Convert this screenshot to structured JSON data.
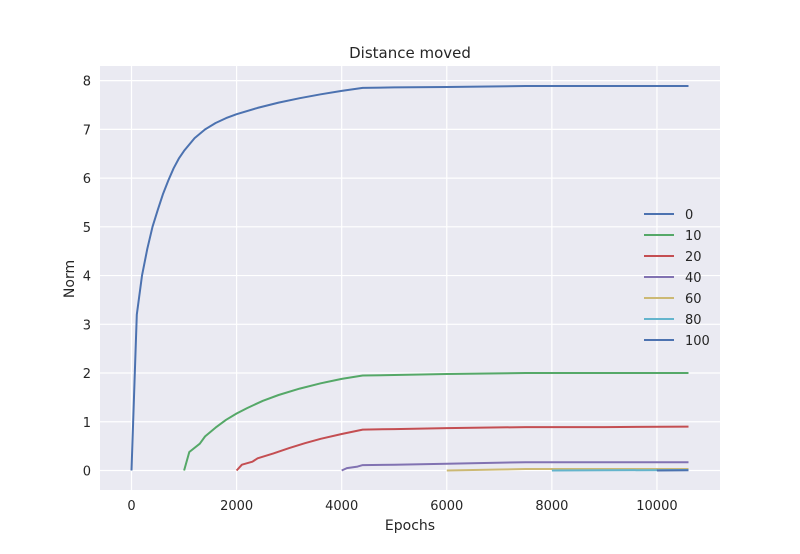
{
  "chart_data": {
    "type": "line",
    "title": "Distance moved",
    "xlabel": "Epochs",
    "ylabel": "Norm",
    "xlim": [
      -600,
      11200
    ],
    "ylim": [
      -0.4,
      8.3
    ],
    "xticks": [
      0,
      2000,
      4000,
      6000,
      8000,
      10000
    ],
    "yticks": [
      0,
      1,
      2,
      3,
      4,
      5,
      6,
      7,
      8
    ],
    "grid": true,
    "legend_position": "right",
    "series": [
      {
        "name": "0",
        "color": "#4c72b0",
        "points": [
          [
            0,
            0
          ],
          [
            100,
            3.2
          ],
          [
            200,
            4.0
          ],
          [
            300,
            4.55
          ],
          [
            400,
            5.0
          ],
          [
            500,
            5.35
          ],
          [
            600,
            5.68
          ],
          [
            700,
            5.95
          ],
          [
            800,
            6.2
          ],
          [
            900,
            6.4
          ],
          [
            1000,
            6.56
          ],
          [
            1200,
            6.82
          ],
          [
            1400,
            7.0
          ],
          [
            1600,
            7.13
          ],
          [
            1800,
            7.23
          ],
          [
            2000,
            7.31
          ],
          [
            2400,
            7.44
          ],
          [
            2800,
            7.55
          ],
          [
            3200,
            7.64
          ],
          [
            3600,
            7.72
          ],
          [
            4000,
            7.79
          ],
          [
            4400,
            7.85
          ],
          [
            5000,
            7.86
          ],
          [
            6000,
            7.87
          ],
          [
            7500,
            7.89
          ],
          [
            9000,
            7.89
          ],
          [
            10600,
            7.89
          ]
        ]
      },
      {
        "name": "10",
        "color": "#55a868",
        "points": [
          [
            1000,
            0
          ],
          [
            1100,
            0.38
          ],
          [
            1300,
            0.55
          ],
          [
            1400,
            0.7
          ],
          [
            1600,
            0.88
          ],
          [
            1800,
            1.04
          ],
          [
            2000,
            1.17
          ],
          [
            2200,
            1.28
          ],
          [
            2500,
            1.43
          ],
          [
            2800,
            1.55
          ],
          [
            3200,
            1.68
          ],
          [
            3600,
            1.79
          ],
          [
            4000,
            1.88
          ],
          [
            4400,
            1.95
          ],
          [
            5000,
            1.96
          ],
          [
            6000,
            1.98
          ],
          [
            7500,
            2.0
          ],
          [
            9000,
            2.0
          ],
          [
            10600,
            2.0
          ]
        ]
      },
      {
        "name": "20",
        "color": "#c44e52",
        "points": [
          [
            2000,
            0
          ],
          [
            2100,
            0.12
          ],
          [
            2300,
            0.18
          ],
          [
            2400,
            0.25
          ],
          [
            2700,
            0.35
          ],
          [
            3000,
            0.46
          ],
          [
            3300,
            0.56
          ],
          [
            3600,
            0.65
          ],
          [
            4000,
            0.75
          ],
          [
            4400,
            0.84
          ],
          [
            5000,
            0.85
          ],
          [
            6000,
            0.87
          ],
          [
            7500,
            0.89
          ],
          [
            9000,
            0.89
          ],
          [
            10600,
            0.9
          ]
        ]
      },
      {
        "name": "40",
        "color": "#8172b2",
        "points": [
          [
            4000,
            0
          ],
          [
            4100,
            0.05
          ],
          [
            4300,
            0.08
          ],
          [
            4400,
            0.11
          ],
          [
            5000,
            0.12
          ],
          [
            6000,
            0.14
          ],
          [
            7500,
            0.17
          ],
          [
            9000,
            0.17
          ],
          [
            10600,
            0.17
          ]
        ]
      },
      {
        "name": "60",
        "color": "#ccb974",
        "points": [
          [
            6000,
            0
          ],
          [
            7000,
            0.02
          ],
          [
            7500,
            0.03
          ],
          [
            9000,
            0.03
          ],
          [
            10600,
            0.03
          ]
        ]
      },
      {
        "name": "80",
        "color": "#64b5cd",
        "points": [
          [
            8000,
            0
          ],
          [
            9000,
            0.005
          ],
          [
            10600,
            0.01
          ]
        ]
      },
      {
        "name": "100",
        "color": "#4c72b0",
        "points": [
          [
            10000,
            0
          ],
          [
            10600,
            0.005
          ]
        ]
      }
    ]
  }
}
